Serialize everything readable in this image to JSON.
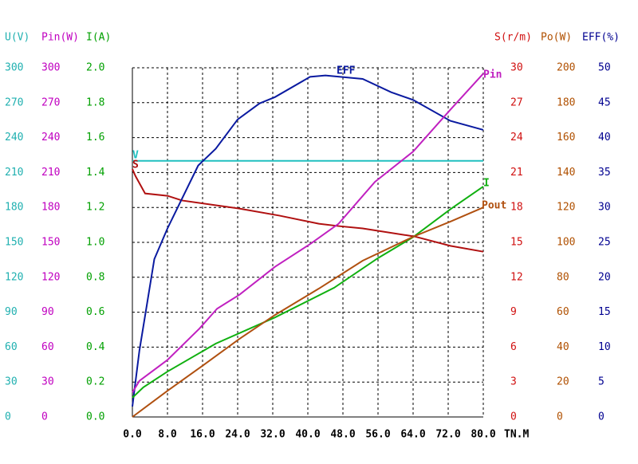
{
  "chart_data": {
    "type": "line",
    "x_label": "TN.M",
    "xlim": [
      0,
      80
    ],
    "xticks": [
      {
        "value": 0,
        "label": "0.0"
      },
      {
        "value": 8,
        "label": "8.0"
      },
      {
        "value": 16,
        "label": "16.0"
      },
      {
        "value": 24,
        "label": "24.0"
      },
      {
        "value": 32,
        "label": "32.0"
      },
      {
        "value": 40,
        "label": "40.0"
      },
      {
        "value": 48,
        "label": "48.0"
      },
      {
        "value": 56,
        "label": "56.0"
      },
      {
        "value": 64,
        "label": "64.0"
      },
      {
        "value": 72,
        "label": "72.0"
      },
      {
        "value": 80,
        "label": "80.0"
      }
    ],
    "grid": true,
    "axes": [
      {
        "label": "U(V)",
        "side": "left",
        "color": "#20b0b0",
        "ylim": [
          0,
          300
        ],
        "yticks": [
          0,
          30,
          60,
          90,
          120,
          150,
          180,
          210,
          240,
          270,
          300
        ]
      },
      {
        "label": "Pin(W)",
        "side": "left",
        "color": "#c000c0",
        "ylim": [
          0,
          300
        ],
        "yticks": [
          0,
          30,
          60,
          90,
          120,
          150,
          180,
          210,
          240,
          270,
          300
        ]
      },
      {
        "label": "I(A)",
        "side": "left",
        "color": "#00a000",
        "ylim": [
          0,
          2
        ],
        "yticks": [
          {
            "value": 0,
            "label": "0.0"
          },
          {
            "value": 0.2,
            "label": "0.2"
          },
          {
            "value": 0.4,
            "label": "0.4"
          },
          {
            "value": 0.6,
            "label": "0.6"
          },
          {
            "value": 0.8,
            "label": "0.8"
          },
          {
            "value": 1,
            "label": "1.0"
          },
          {
            "value": 1.2,
            "label": "1.2"
          },
          {
            "value": 1.4,
            "label": "1.4"
          },
          {
            "value": 1.6,
            "label": "1.6"
          },
          {
            "value": 1.8,
            "label": "1.8"
          },
          {
            "value": 2,
            "label": "2.0"
          }
        ]
      },
      {
        "label": "S(r/m)",
        "side": "right",
        "color": "#d01010",
        "ylim": [
          0,
          30
        ],
        "yticks": [
          0,
          3,
          6,
          9,
          12,
          15,
          18,
          21,
          24,
          27,
          30
        ]
      },
      {
        "label": "Po(W)",
        "side": "right",
        "color": "#b05000",
        "ylim": [
          0,
          200
        ],
        "yticks": [
          0,
          20,
          40,
          60,
          80,
          100,
          120,
          140,
          160,
          180,
          200
        ]
      },
      {
        "label": "EFF(%)",
        "side": "right",
        "color": "#000090",
        "ylim": [
          0,
          50
        ],
        "yticks": [
          0,
          5,
          10,
          15,
          20,
          25,
          30,
          35,
          40,
          45,
          50
        ]
      }
    ],
    "series": [
      {
        "name": "V",
        "axis": 0,
        "color": "#20c0c0",
        "x": [
          0,
          80
        ],
        "values": [
          220,
          220
        ]
      },
      {
        "name": "S",
        "axis": 3,
        "color": "#b01010",
        "x": [
          0,
          0.7,
          2.9,
          8,
          11.3,
          24.4,
          33.5,
          42.5,
          47,
          52.5,
          64.4,
          72.5,
          80
        ],
        "values": [
          21.3,
          20.7,
          19.2,
          19.0,
          18.6,
          17.9,
          17.3,
          16.6,
          16.4,
          16.2,
          15.5,
          14.7,
          14.2
        ]
      },
      {
        "name": "EFF",
        "axis": 5,
        "color": "#0a1aa0",
        "x": [
          0,
          1.6,
          5,
          8,
          15,
          19,
          24,
          29,
          32.5,
          40.5,
          44,
          52.5,
          59,
          64,
          72.5,
          80
        ],
        "values": [
          1.5,
          9.5,
          22.6,
          27,
          36,
          38.4,
          42.6,
          44.9,
          45.8,
          48.7,
          48.9,
          48.4,
          46.5,
          45.4,
          42.4,
          41.1
        ]
      },
      {
        "name": "Pin",
        "axis": 1,
        "color": "#c020c0",
        "x": [
          0,
          1.6,
          8,
          15.3,
          19.3,
          24.4,
          32.5,
          40.7,
          47,
          55.3,
          64,
          72.5,
          80
        ],
        "values": [
          21,
          31,
          49,
          76,
          93,
          105,
          129,
          149,
          166,
          202,
          228,
          264,
          295
        ]
      },
      {
        "name": "I",
        "axis": 2,
        "color": "#10b010",
        "x": [
          0,
          2.5,
          8,
          19,
          32.5,
          46,
          56,
          64,
          72.5,
          80
        ],
        "values": [
          0.11,
          0.17,
          0.26,
          0.42,
          0.57,
          0.74,
          0.91,
          1.03,
          1.19,
          1.32
        ]
      },
      {
        "name": "Pout",
        "axis": 4,
        "color": "#b05010",
        "x": [
          0,
          8,
          16.2,
          24.4,
          32.5,
          42.5,
          52.5,
          64,
          72.5,
          80
        ],
        "values": [
          0,
          15,
          29.7,
          44.7,
          58.4,
          73.5,
          89.5,
          103.2,
          111.9,
          120
        ]
      }
    ]
  }
}
